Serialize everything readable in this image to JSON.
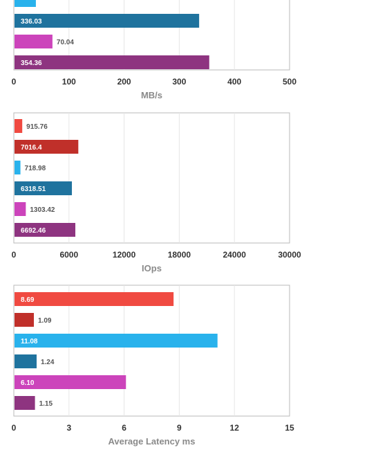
{
  "charts": [
    {
      "xlabel": "MB/s",
      "xlim": [
        0,
        500
      ],
      "ticks": [
        "0",
        "100",
        "200",
        "300",
        "400",
        "500"
      ],
      "colors": [
        "#29b2ec",
        "#1f739e",
        "#cc44bb",
        "#8e3480"
      ],
      "labels": [
        "",
        "336.03",
        "70.04",
        "354.36"
      ],
      "values": [
        40,
        336.03,
        70.04,
        354.36
      ]
    },
    {
      "xlabel": "IOps",
      "xlim": [
        0,
        30000
      ],
      "ticks": [
        "0",
        "6000",
        "12000",
        "18000",
        "24000",
        "30000"
      ],
      "colors": [
        "#f04a41",
        "#c0302a",
        "#29b2ec",
        "#1f739e",
        "#cc44bb",
        "#8e3480"
      ],
      "labels": [
        "915.76",
        "7016.4",
        "718.98",
        "6318.51",
        "1303.42",
        "6692.46"
      ],
      "values": [
        915.76,
        7016.4,
        718.98,
        6318.51,
        1303.42,
        6692.46
      ]
    },
    {
      "xlabel": "Average Latency ms",
      "xlim": [
        0,
        15
      ],
      "ticks": [
        "0",
        "3",
        "6",
        "9",
        "12",
        "15"
      ],
      "colors": [
        "#f04a41",
        "#c0302a",
        "#29b2ec",
        "#1f739e",
        "#cc44bb",
        "#8e3480"
      ],
      "labels": [
        "8.69",
        "1.09",
        "11.08",
        "1.24",
        "6.10",
        "1.15"
      ],
      "values": [
        8.69,
        1.09,
        11.08,
        1.24,
        6.1,
        1.15
      ]
    }
  ],
  "chart_data": [
    {
      "type": "bar",
      "orientation": "horizontal",
      "xlabel": "MB/s",
      "xlim": [
        0,
        500
      ],
      "values": [
        40,
        336.03,
        70.04,
        354.36
      ],
      "data_labels": [
        "",
        "336.03",
        "70.04",
        "354.36"
      ],
      "grid": true
    },
    {
      "type": "bar",
      "orientation": "horizontal",
      "xlabel": "IOps",
      "xlim": [
        0,
        30000
      ],
      "values": [
        915.76,
        7016.4,
        718.98,
        6318.51,
        1303.42,
        6692.46
      ],
      "data_labels": [
        "915.76",
        "7016.4",
        "718.98",
        "6318.51",
        "1303.42",
        "6692.46"
      ],
      "grid": true
    },
    {
      "type": "bar",
      "orientation": "horizontal",
      "xlabel": "Average Latency ms",
      "xlim": [
        0,
        15
      ],
      "values": [
        8.69,
        1.09,
        11.08,
        1.24,
        6.1,
        1.15
      ],
      "data_labels": [
        "8.69",
        "1.09",
        "11.08",
        "1.24",
        "6.10",
        "1.15"
      ],
      "grid": true
    }
  ]
}
